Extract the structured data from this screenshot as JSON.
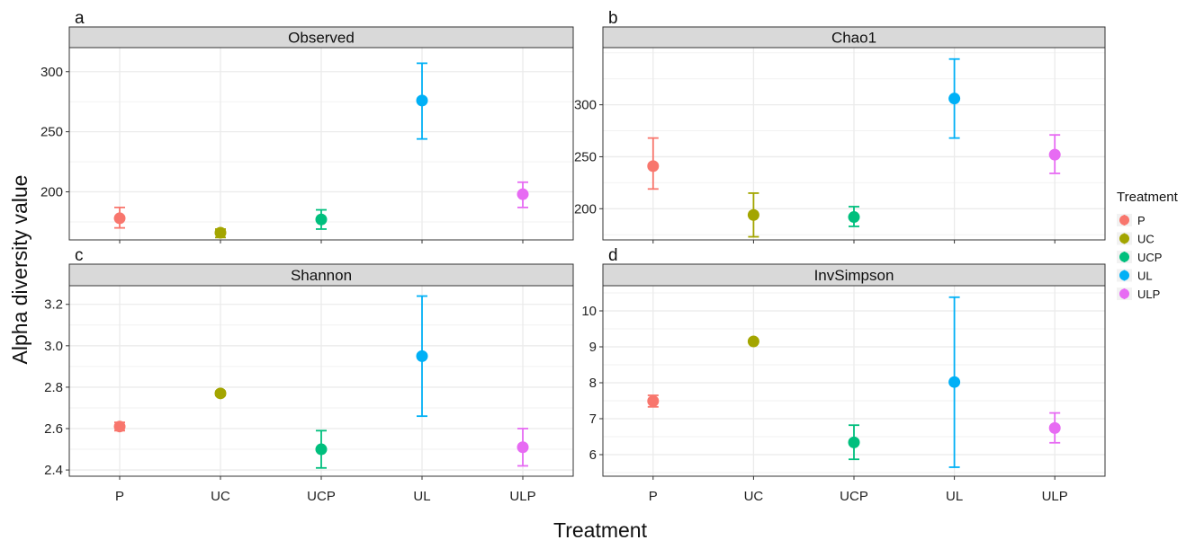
{
  "figure": {
    "ylabel": "Alpha diversity value",
    "xlabel": "Treatment"
  },
  "legend": {
    "title": "Treatment",
    "placement": "right",
    "items": [
      {
        "label": "P",
        "color": "#F8766D"
      },
      {
        "label": "UC",
        "color": "#A3A500"
      },
      {
        "label": "UCP",
        "color": "#00BF7D"
      },
      {
        "label": "UL",
        "color": "#00B0F6"
      },
      {
        "label": "ULP",
        "color": "#E76BF3"
      }
    ]
  },
  "chart_data": [
    {
      "type": "scatter",
      "panel_letter": "a",
      "strip_title": "Observed",
      "categories": [
        "P",
        "UC",
        "UCP",
        "UL",
        "ULP"
      ],
      "values": [
        178,
        166,
        177,
        276,
        198
      ],
      "error_low": [
        170,
        162,
        169,
        244,
        187
      ],
      "error_high": [
        187,
        169,
        185,
        307,
        208
      ],
      "ylim": [
        160,
        320
      ],
      "yticks": [
        200,
        250,
        300
      ],
      "ytick_labels": [
        "200",
        "250",
        "300"
      ],
      "show_x_tick_labels": false,
      "grid": true
    },
    {
      "type": "scatter",
      "panel_letter": "b",
      "strip_title": "Chao1",
      "categories": [
        "P",
        "UC",
        "UCP",
        "UL",
        "ULP"
      ],
      "values": [
        241,
        194,
        192,
        306,
        252
      ],
      "error_low": [
        219,
        173,
        183,
        268,
        234
      ],
      "error_high": [
        268,
        215,
        202,
        344,
        271
      ],
      "ylim": [
        170,
        355
      ],
      "yticks": [
        200,
        250,
        300
      ],
      "ytick_labels": [
        "200",
        "250",
        "300"
      ],
      "show_x_tick_labels": false,
      "grid": true
    },
    {
      "type": "scatter",
      "panel_letter": "c",
      "strip_title": "Shannon",
      "categories": [
        "P",
        "UC",
        "UCP",
        "UL",
        "ULP"
      ],
      "values": [
        2.61,
        2.77,
        2.5,
        2.95,
        2.51
      ],
      "error_low": [
        2.59,
        2.76,
        2.41,
        2.66,
        2.42
      ],
      "error_high": [
        2.63,
        2.78,
        2.59,
        3.24,
        2.6
      ],
      "ylim": [
        2.37,
        3.29
      ],
      "yticks": [
        2.4,
        2.6,
        2.8,
        3.0,
        3.2
      ],
      "ytick_labels": [
        "2.4",
        "2.6",
        "2.8",
        "3.0",
        "3.2"
      ],
      "show_x_tick_labels": true,
      "grid": true
    },
    {
      "type": "scatter",
      "panel_letter": "d",
      "strip_title": "InvSimpson",
      "categories": [
        "P",
        "UC",
        "UCP",
        "UL",
        "ULP"
      ],
      "values": [
        7.49,
        9.15,
        6.34,
        8.02,
        6.74
      ],
      "error_low": [
        7.33,
        9.12,
        5.87,
        5.65,
        6.33
      ],
      "error_high": [
        7.65,
        9.18,
        6.82,
        10.38,
        7.16
      ],
      "ylim": [
        5.4,
        10.7
      ],
      "yticks": [
        6,
        7,
        8,
        9,
        10
      ],
      "ytick_labels": [
        "6",
        "7",
        "8",
        "9",
        "10"
      ],
      "show_x_tick_labels": true,
      "grid": true
    }
  ]
}
